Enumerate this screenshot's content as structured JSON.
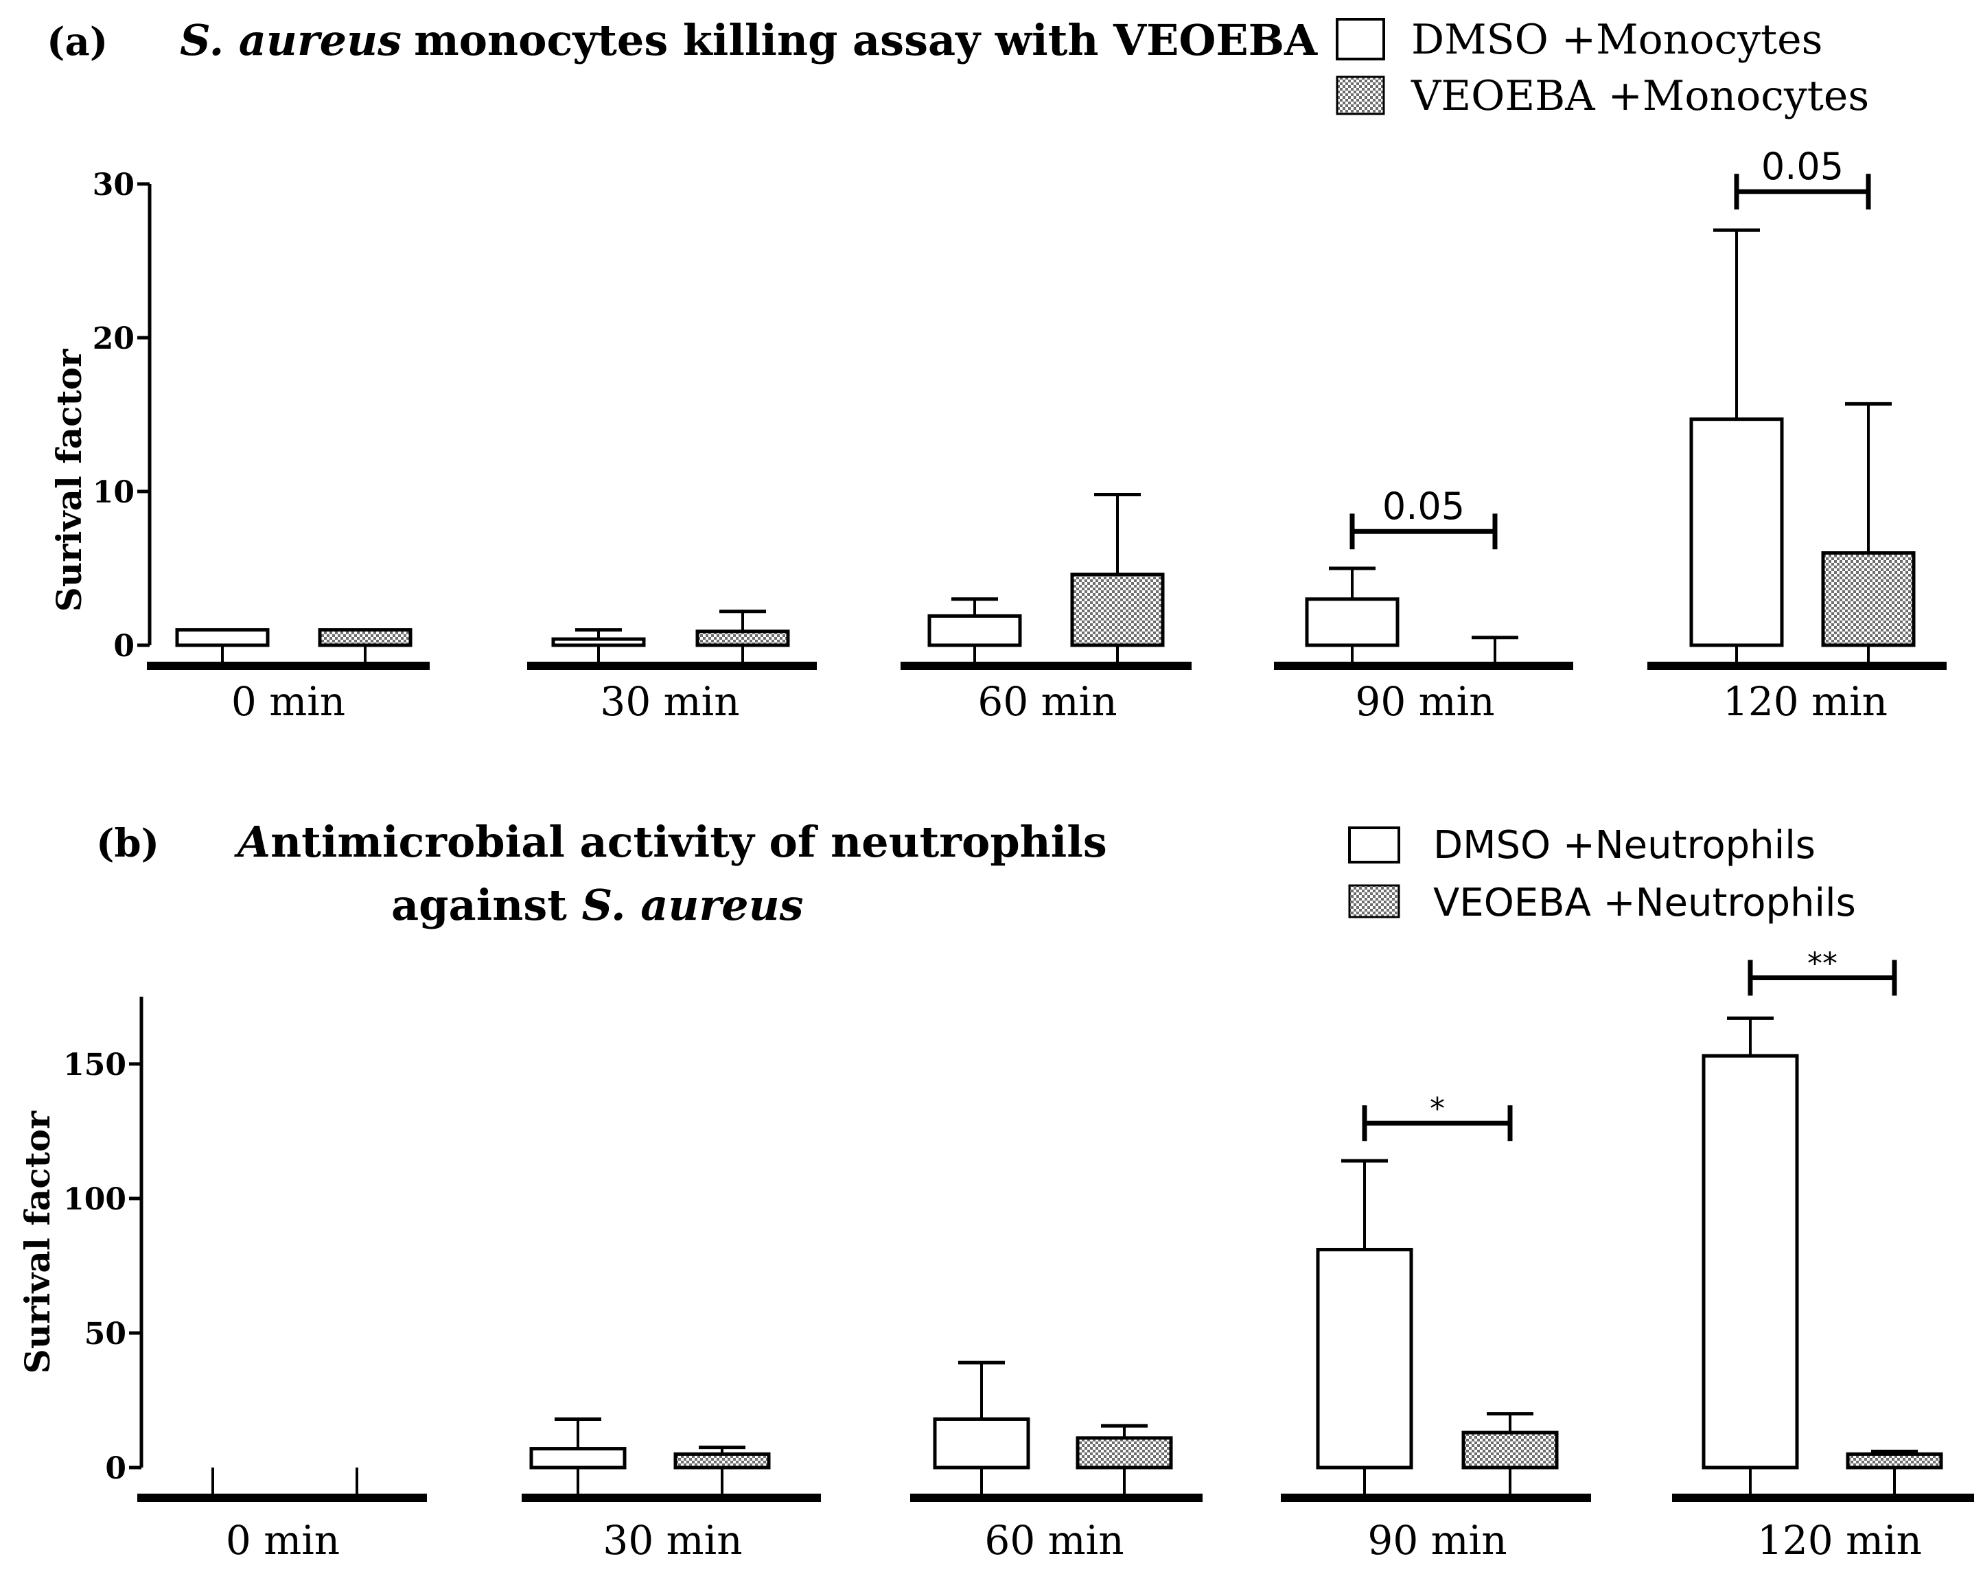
{
  "chart_data": [
    {
      "type": "bar",
      "panel": "(a)",
      "title": "S. aureus monocytes killing assay with VEOEBA",
      "title_italic": "S. aureus",
      "title_rest": "monocytes killing assay with VEOEBA",
      "ylabel": "Surival factor",
      "xlabel": "",
      "ylim": [
        0,
        30
      ],
      "yticks": [
        0,
        10,
        20,
        30
      ],
      "categories": [
        "0 min",
        "30 min",
        "60 min",
        "90 min",
        "120 min"
      ],
      "series": [
        {
          "name": "DMSO +Monocytes",
          "pattern": "open",
          "values": [
            1,
            0.4,
            1.9,
            3,
            14.7
          ],
          "errors": [
            0,
            0.6,
            1.1,
            2,
            12.3
          ]
        },
        {
          "name": "VEOEBA +Monocytes",
          "pattern": "hatched",
          "values": [
            1,
            0.9,
            4.6,
            0,
            6
          ],
          "errors": [
            0,
            1.3,
            5.2,
            0.5,
            9.7
          ]
        }
      ],
      "significance": [
        {
          "category": "90 min",
          "label": "0.05",
          "y": 7.4
        },
        {
          "category": "120 min",
          "label": "0.05",
          "y": 29.5
        }
      ]
    },
    {
      "type": "bar",
      "panel": "(b)",
      "title_line1_italic": "A",
      "title_line1_rest": "ntimicrobial activity of neutrophils",
      "title_line2_plain": "against ",
      "title_line2_italic": "S. aureus",
      "ylabel": "Surival factor",
      "xlabel": "",
      "ylim": [
        0,
        175
      ],
      "yticks": [
        0,
        50,
        100,
        150
      ],
      "categories": [
        "0 min",
        "30 min",
        "60 min",
        "90 min",
        "120 min"
      ],
      "series": [
        {
          "name": "DMSO +Neutrophils",
          "pattern": "open",
          "values": [
            0,
            7,
            18,
            81,
            153
          ],
          "errors": [
            0,
            11,
            21,
            33,
            14
          ]
        },
        {
          "name": "VEOEBA  +Neutrophils",
          "pattern": "hatched",
          "values": [
            0,
            5,
            11,
            13,
            5
          ],
          "errors": [
            0,
            2.5,
            4.5,
            7,
            1
          ]
        }
      ],
      "significance": [
        {
          "category": "90 min",
          "label": "*",
          "y": 128
        },
        {
          "category": "120 min",
          "label": "**",
          "y": 182
        }
      ]
    }
  ],
  "colors": {
    "ink": "#000000",
    "bar_open": "#ffffff",
    "bar_hatched": "#9a9a9a"
  }
}
